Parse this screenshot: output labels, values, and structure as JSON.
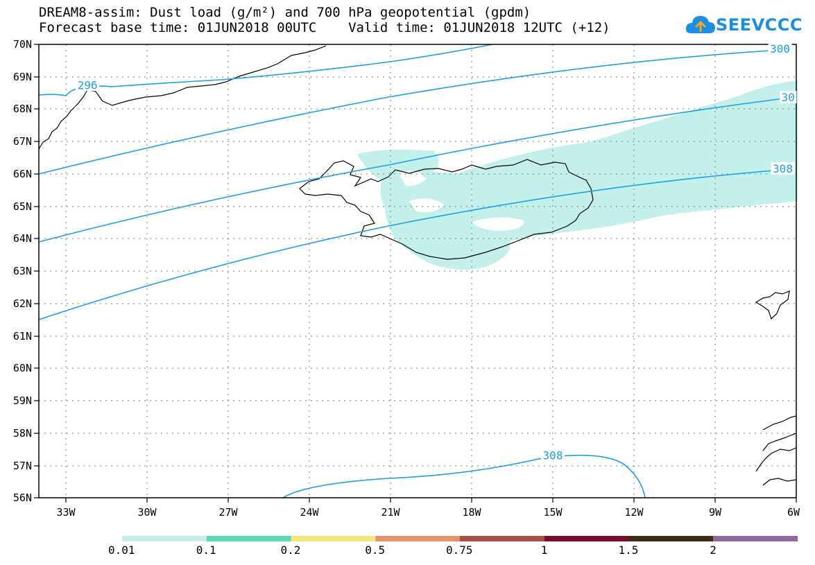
{
  "title_line1": "DREAM8-assim: Dust load (g/m²) and 700 hPa geopotential (gpdm)",
  "title_line2": "Forecast base time: 01JUN2018 00UTC    Valid time: 01JUN2018 12UTC (+12)",
  "logo": {
    "text": "SEEVCCC",
    "icon": "cloud-icon",
    "color": "#1a8fe0"
  },
  "map": {
    "lon_range": [
      -34,
      -6
    ],
    "lat_range": [
      56,
      70
    ],
    "lat_labels": [
      "70N",
      "69N",
      "68N",
      "67N",
      "66N",
      "65N",
      "64N",
      "63N",
      "62N",
      "61N",
      "60N",
      "59N",
      "58N",
      "57N",
      "56N"
    ],
    "lon_labels": [
      "33W",
      "30W",
      "27W",
      "24W",
      "21W",
      "18W",
      "15W",
      "12W",
      "9W",
      "6W"
    ],
    "contour_color": "#1a9ee8",
    "dust_color": "#c3f0eb",
    "contour_labels": [
      {
        "text": "296",
        "lon": -32.2,
        "lat": 68.73
      },
      {
        "text": "300",
        "lon": -6.6,
        "lat": 69.85
      },
      {
        "text": "30",
        "lon": -6.3,
        "lat": 68.35
      },
      {
        "text": "308",
        "lon": -6.5,
        "lat": 66.15
      },
      {
        "text": "308",
        "lon": -15.0,
        "lat": 57.3
      }
    ]
  },
  "colorbar": {
    "colors": [
      "#c3f0eb",
      "#5adab7",
      "#f5e57a",
      "#e8946a",
      "#a54f44",
      "#7c0c2e",
      "#3d2b14",
      "#92679e"
    ],
    "labels": [
      "0.01",
      "0.1",
      "0.2",
      "0.5",
      "0.75",
      "1",
      "1.5",
      "2"
    ]
  }
}
